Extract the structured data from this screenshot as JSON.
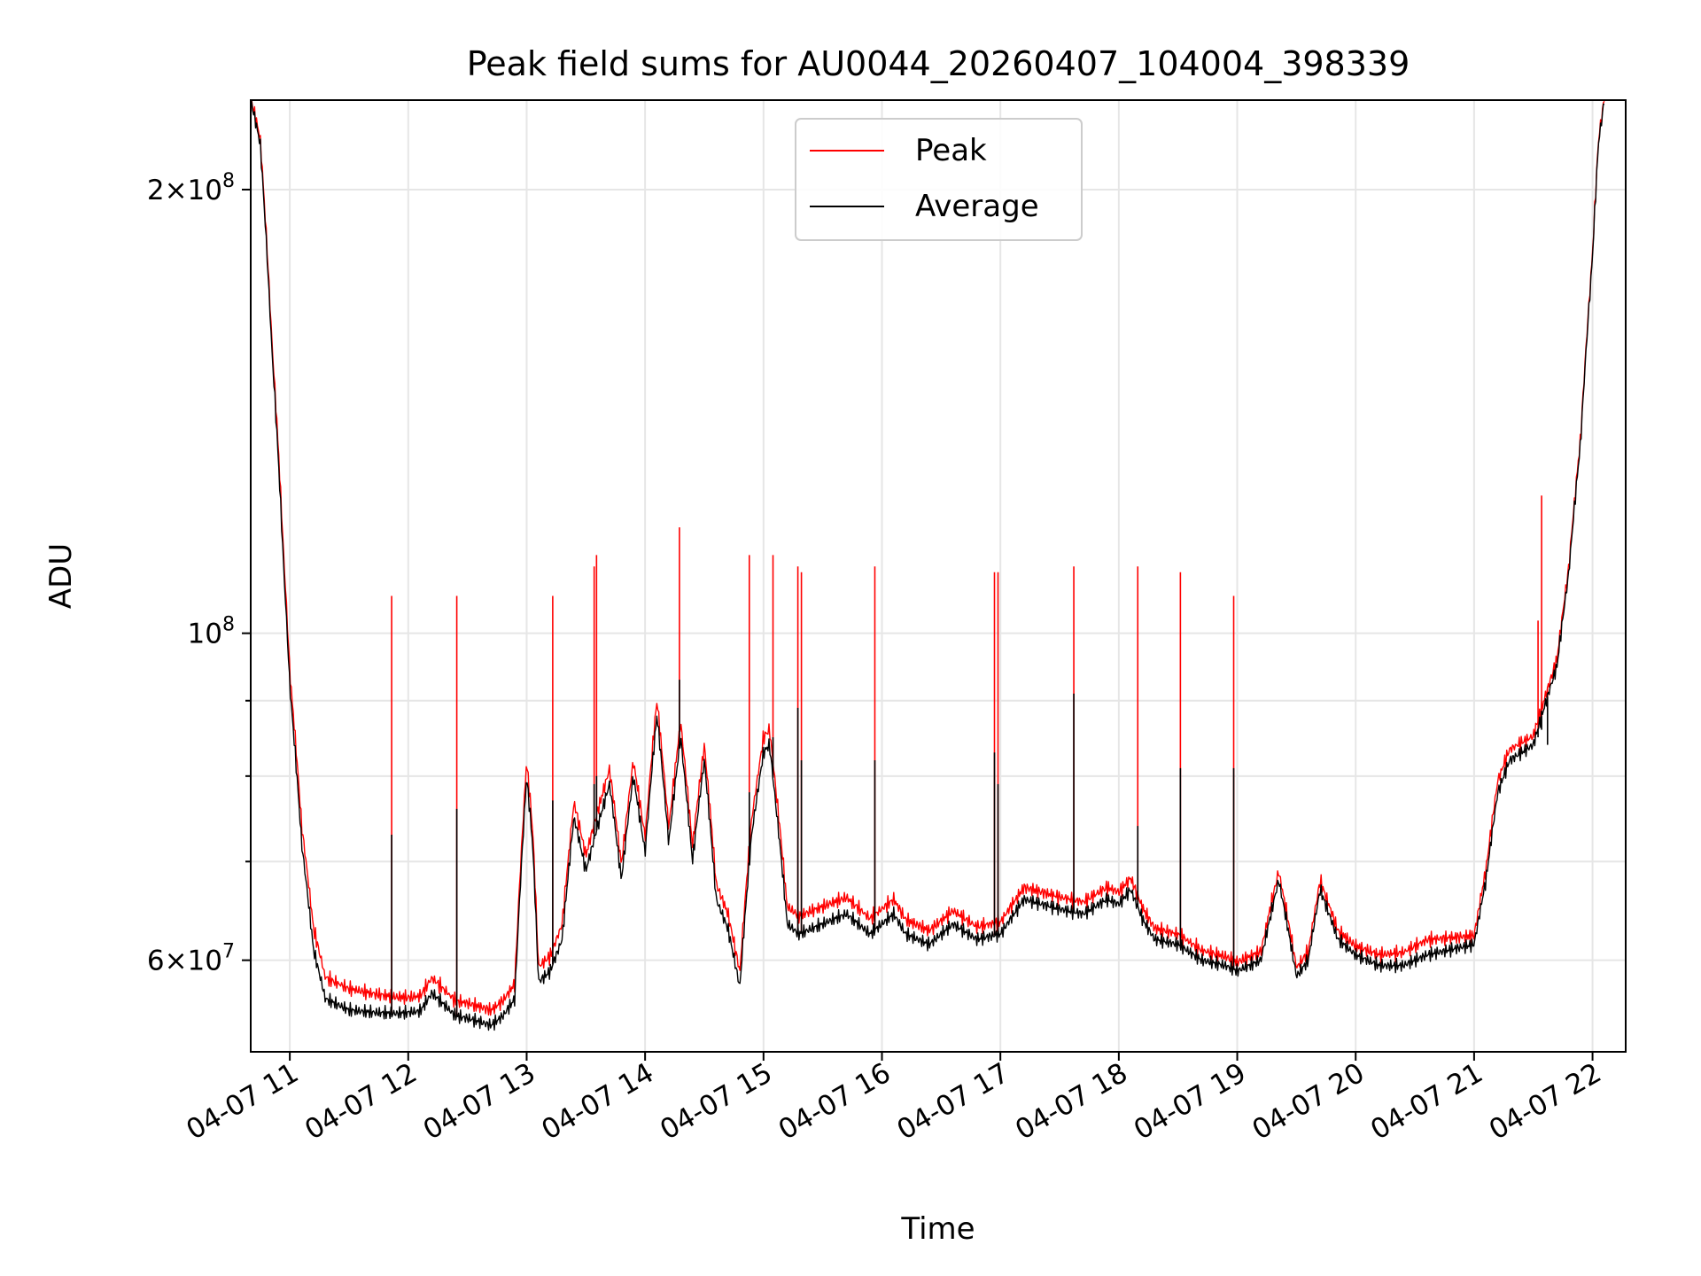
{
  "chart_data": {
    "type": "line",
    "title": "Peak field sums for AU0044_20260407_104004_398339",
    "xlabel": "Time",
    "ylabel": "ADU",
    "yscale": "log",
    "ylim": [
      52000000,
      230000000
    ],
    "xlim": [
      10.67,
      22.28
    ],
    "x_unit": "hour of day (2026-04-07)",
    "grid": true,
    "legend": {
      "placement": "top-center",
      "entries": [
        "Peak",
        "Average"
      ]
    },
    "colors": {
      "peak": "#ff0000",
      "average": "#000000",
      "grid": "#e6e6e6"
    },
    "x_ticks": [
      {
        "value": 11,
        "label": "04-07 11"
      },
      {
        "value": 12,
        "label": "04-07 12"
      },
      {
        "value": 13,
        "label": "04-07 13"
      },
      {
        "value": 14,
        "label": "04-07 14"
      },
      {
        "value": 15,
        "label": "04-07 15"
      },
      {
        "value": 16,
        "label": "04-07 16"
      },
      {
        "value": 17,
        "label": "04-07 17"
      },
      {
        "value": 18,
        "label": "04-07 18"
      },
      {
        "value": 19,
        "label": "04-07 19"
      },
      {
        "value": 20,
        "label": "04-07 20"
      },
      {
        "value": 21,
        "label": "04-07 21"
      },
      {
        "value": 22,
        "label": "04-07 22"
      }
    ],
    "y_major_ticks": [
      {
        "value": 60000000,
        "mantissa": "6",
        "exponent": "7"
      },
      {
        "value": 100000000,
        "mantissa": "",
        "exponent": "8"
      },
      {
        "value": 200000000,
        "mantissa": "2",
        "exponent": "8"
      }
    ],
    "y_minor_ticks": [
      70000000,
      80000000,
      90000000
    ],
    "average_series": {
      "name": "Average",
      "x": [
        10.67,
        10.75,
        10.85,
        10.95,
        11.0,
        11.05,
        11.1,
        11.2,
        11.3,
        11.5,
        11.7,
        11.9,
        12.1,
        12.2,
        12.3,
        12.4,
        12.5,
        12.6,
        12.7,
        12.8,
        12.9,
        13.0,
        13.05,
        13.1,
        13.2,
        13.3,
        13.4,
        13.5,
        13.6,
        13.7,
        13.8,
        13.9,
        14.0,
        14.1,
        14.2,
        14.3,
        14.4,
        14.5,
        14.6,
        14.7,
        14.8,
        14.9,
        15.0,
        15.05,
        15.1,
        15.2,
        15.3,
        15.5,
        15.7,
        15.9,
        16.0,
        16.1,
        16.2,
        16.4,
        16.6,
        16.8,
        17.0,
        17.2,
        17.5,
        17.7,
        17.9,
        18.0,
        18.1,
        18.2,
        18.3,
        18.5,
        18.7,
        18.9,
        19.0,
        19.2,
        19.35,
        19.5,
        19.6,
        19.7,
        19.85,
        20.0,
        20.2,
        20.4,
        20.6,
        20.8,
        21.0,
        21.1,
        21.2,
        21.3,
        21.5,
        21.7,
        21.8,
        21.9,
        22.0,
        22.05,
        22.1
      ],
      "y": [
        230000000,
        215000000,
        155000000,
        110000000,
        92000000,
        82000000,
        72000000,
        61000000,
        56500000,
        55500000,
        55300000,
        55200000,
        55400000,
        57000000,
        56000000,
        55000000,
        54800000,
        54500000,
        54200000,
        55000000,
        56500000,
        80000000,
        72000000,
        58000000,
        59000000,
        62000000,
        75000000,
        69000000,
        74000000,
        79000000,
        68000000,
        80000000,
        71000000,
        88000000,
        72000000,
        85000000,
        70000000,
        82000000,
        66000000,
        63000000,
        57500000,
        73000000,
        83000000,
        84000000,
        77000000,
        63500000,
        62500000,
        63500000,
        64500000,
        62500000,
        63500000,
        64500000,
        62500000,
        61500000,
        63500000,
        62000000,
        62500000,
        66000000,
        65000000,
        64500000,
        66000000,
        65500000,
        67000000,
        64000000,
        62000000,
        61500000,
        60000000,
        59500000,
        59000000,
        60000000,
        68000000,
        58500000,
        60000000,
        67000000,
        62000000,
        60500000,
        59500000,
        59500000,
        60500000,
        61000000,
        61500000,
        68000000,
        78000000,
        82000000,
        84000000,
        95000000,
        110000000,
        135000000,
        180000000,
        215000000,
        230000000
      ]
    },
    "peak_offsets": {
      "x": [
        10.67,
        11.2,
        11.5,
        12.0,
        12.5,
        13.0,
        14.0,
        15.0,
        15.3,
        16.0,
        17.0,
        18.0,
        19.0,
        20.0,
        20.6,
        21.0,
        21.2,
        22.1
      ],
      "ratio": [
        1.0,
        1.03,
        1.03,
        1.02,
        1.02,
        1.02,
        1.02,
        1.02,
        1.025,
        1.02,
        1.015,
        1.015,
        1.01,
        1.01,
        1.02,
        1.01,
        1.015,
        1.0
      ]
    },
    "peak_spikes": [
      {
        "x": 11.86,
        "peak": 106000000,
        "average": 73000000
      },
      {
        "x": 12.41,
        "peak": 106000000,
        "average": 76000000
      },
      {
        "x": 13.22,
        "peak": 106000000,
        "average": 77000000
      },
      {
        "x": 13.57,
        "peak": 111000000,
        "average": 79000000
      },
      {
        "x": 13.59,
        "peak": 113000000,
        "average": 80000000
      },
      {
        "x": 14.29,
        "peak": 118000000,
        "average": 93000000
      },
      {
        "x": 14.88,
        "peak": 113000000,
        "average": 78000000
      },
      {
        "x": 15.08,
        "peak": 113000000,
        "average": 85000000
      },
      {
        "x": 15.29,
        "peak": 111000000,
        "average": 89000000
      },
      {
        "x": 15.32,
        "peak": 110000000,
        "average": 82000000
      },
      {
        "x": 15.94,
        "peak": 111000000,
        "average": 82000000
      },
      {
        "x": 16.95,
        "peak": 110000000,
        "average": 83000000
      },
      {
        "x": 16.98,
        "peak": 110000000,
        "average": 79000000
      },
      {
        "x": 17.62,
        "peak": 111000000,
        "average": 91000000
      },
      {
        "x": 18.16,
        "peak": 111000000,
        "average": 74000000
      },
      {
        "x": 18.52,
        "peak": 110000000,
        "average": 81000000
      },
      {
        "x": 18.97,
        "peak": 106000000,
        "average": 81000000
      },
      {
        "x": 21.54,
        "peak": 102000000,
        "average": 85000000
      },
      {
        "x": 21.57,
        "peak": 124000000,
        "average": 86000000
      },
      {
        "x": 21.62,
        "peak": 92000000,
        "average": 84000000
      }
    ]
  }
}
